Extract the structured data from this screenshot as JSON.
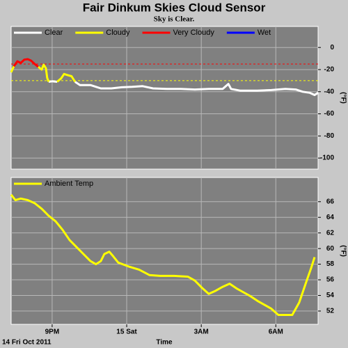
{
  "chart_data": [
    {
      "type": "line",
      "title": "Fair Dinkum Skies Cloud Sensor",
      "subtitle": "Sky is Clear.",
      "ylabel": "(°F)",
      "legend": "upper left",
      "grid": true,
      "x": [
        19.35,
        19.46,
        19.6,
        19.74,
        19.88,
        20.02,
        20.16,
        20.3,
        20.44,
        20.58,
        20.66,
        20.75,
        20.8,
        20.86,
        21.0,
        21.2,
        21.36,
        21.48,
        21.62,
        21.78,
        21.92,
        22.12,
        22.54,
        22.96,
        23.38,
        23.8,
        24.22,
        24.64,
        25.06,
        25.62,
        26.18,
        26.74,
        27.3,
        27.86,
        28.09,
        28.2,
        28.56,
        29.26,
        29.82,
        30.38,
        30.8,
        31.08,
        31.36,
        31.56,
        31.7
      ],
      "xlim": [
        19.35,
        31.7
      ],
      "xticks": [
        21,
        24,
        27,
        30
      ],
      "ylim": [
        -110,
        19
      ],
      "yticks": [
        0,
        -20,
        -40,
        -60,
        -80,
        -100
      ],
      "thresholds": [
        {
          "value": -15,
          "color": "#ff0000"
        },
        {
          "value": -30,
          "color": "#ffff00"
        }
      ],
      "series": [
        {
          "name": "Clear",
          "color": "#ffffff",
          "values": [
            null,
            null,
            null,
            null,
            null,
            null,
            null,
            null,
            null,
            null,
            null,
            null,
            null,
            -31,
            -30.6,
            -31,
            null,
            null,
            null,
            null,
            -31,
            -34,
            -34,
            -37,
            -37,
            -36,
            -35.6,
            -35,
            -37,
            -37.5,
            -37.5,
            -38,
            -37.5,
            -37.5,
            -33,
            -37.5,
            -39,
            -39,
            -38.5,
            -37.5,
            -38,
            -40,
            -41,
            -43,
            -41
          ]
        },
        {
          "name": "Cloudy",
          "color": "#ffff00",
          "values": [
            -22.5,
            -17,
            null,
            null,
            null,
            null,
            null,
            null,
            -17.5,
            -20,
            -15.6,
            -18.8,
            -27.5,
            -31,
            null,
            -31,
            -28,
            -24,
            -25,
            -26,
            -31,
            null,
            null,
            null,
            null,
            null,
            null,
            null,
            null,
            null,
            null,
            null,
            null,
            null,
            null,
            null,
            null,
            null,
            null,
            null,
            null,
            null,
            null,
            null,
            null
          ]
        },
        {
          "name": "Very Cloudy",
          "color": "#ff0000",
          "values": [
            null,
            -17,
            -12.5,
            -14,
            -11,
            -10.6,
            -12,
            -15,
            -17.5,
            null,
            null,
            null,
            null,
            null,
            null,
            null,
            null,
            null,
            null,
            null,
            null,
            null,
            null,
            null,
            null,
            null,
            null,
            null,
            null,
            null,
            null,
            null,
            null,
            null,
            null,
            null,
            null,
            null,
            null,
            null,
            null,
            null,
            null,
            null,
            null
          ]
        },
        {
          "name": "Wet",
          "color": "#0000ff",
          "values": [
            null,
            null,
            null,
            null,
            null,
            null,
            null,
            null,
            null,
            null,
            null,
            null,
            null,
            null,
            null,
            null,
            null,
            null,
            null,
            null,
            null,
            null,
            null,
            null,
            null,
            null,
            null,
            null,
            null,
            null,
            null,
            null,
            null,
            null,
            null,
            null,
            null,
            null,
            null,
            null,
            null,
            null,
            null,
            null,
            null
          ]
        }
      ]
    },
    {
      "type": "line",
      "ylabel": "(°F)",
      "xlabel": "Time",
      "date_label": "14 Fri Oct 2011",
      "legend": "upper left",
      "grid": true,
      "x": [
        19.35,
        19.52,
        19.74,
        20.02,
        20.3,
        20.58,
        20.86,
        21.14,
        21.42,
        21.7,
        21.98,
        22.26,
        22.54,
        22.76,
        22.96,
        23.1,
        23.3,
        23.46,
        23.66,
        24.08,
        24.5,
        24.92,
        25.34,
        25.9,
        26.46,
        26.74,
        27.02,
        27.3,
        27.58,
        27.86,
        28.14,
        28.42,
        28.7,
        28.98,
        29.26,
        29.54,
        29.82,
        30.1,
        30.38,
        30.66,
        30.94,
        31.22,
        31.42,
        31.56
      ],
      "xlim": [
        19.35,
        31.7
      ],
      "xticks": [
        {
          "value": 21,
          "label": "9PM"
        },
        {
          "value": 24,
          "label": "15 Sat"
        },
        {
          "value": 27,
          "label": "3AM"
        },
        {
          "value": 30,
          "label": "6AM"
        }
      ],
      "ylim": [
        50.3,
        69.1
      ],
      "yticks": [
        52,
        54,
        56,
        58,
        60,
        62,
        64,
        66
      ],
      "series": [
        {
          "name": "Ambient Temp",
          "color": "#ffff00",
          "values": [
            66.9,
            66.2,
            66.4,
            66.2,
            65.8,
            65.1,
            64.2,
            63.5,
            62.4,
            61.1,
            60.2,
            59.3,
            58.4,
            58.0,
            58.4,
            59.3,
            59.6,
            59.0,
            58.2,
            57.7,
            57.3,
            56.6,
            56.5,
            56.5,
            56.4,
            55.9,
            55.0,
            54.2,
            54.6,
            55.1,
            55.5,
            54.9,
            54.4,
            53.9,
            53.3,
            52.8,
            52.3,
            51.5,
            51.5,
            51.5,
            53.1,
            55.7,
            57.5,
            58.9
          ]
        }
      ]
    }
  ]
}
